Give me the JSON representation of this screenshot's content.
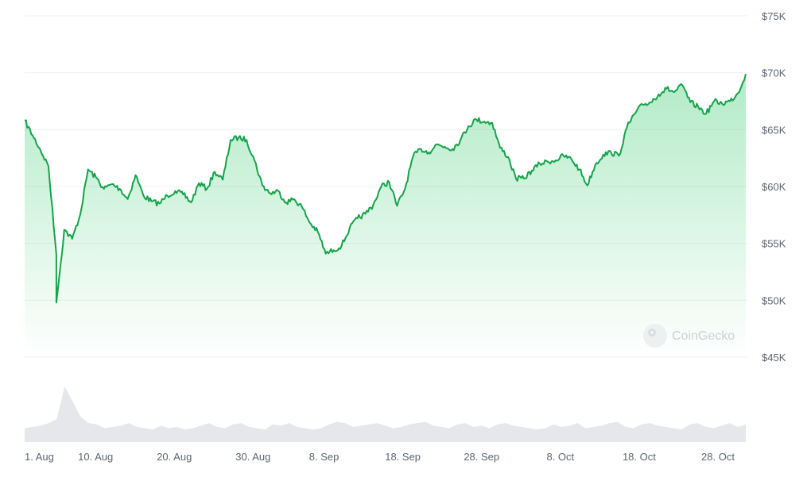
{
  "chart_data": {
    "type": "area",
    "y_axis": {
      "position": "right",
      "ylim": [
        45000,
        75000
      ],
      "ticks": [
        45000,
        50000,
        55000,
        60000,
        65000,
        70000,
        75000
      ],
      "tick_labels": [
        "$45K",
        "$50K",
        "$55K",
        "$60K",
        "$65K",
        "$70K",
        "$75K"
      ]
    },
    "x_axis": {
      "xlim": [
        "2024-08-01",
        "2024-10-28"
      ],
      "ticks": [
        "2024-08-01",
        "2024-08-10",
        "2024-08-20",
        "2024-08-30",
        "2024-09-08",
        "2024-09-18",
        "2024-09-28",
        "2024-10-08",
        "2024-10-18",
        "2024-10-28"
      ],
      "tick_labels": [
        "1. Aug",
        "10. Aug",
        "20. Aug",
        "30. Aug",
        "8. Sep",
        "18. Sep",
        "28. Sep",
        "8. Oct",
        "18. Oct",
        "28. Oct"
      ]
    },
    "grid": true,
    "series": [
      {
        "color": "#16a34a",
        "points": [
          [
            "2024-08-01",
            65800
          ],
          [
            "2024-08-02",
            64500
          ],
          [
            "2024-08-03",
            63200
          ],
          [
            "2024-08-04",
            61800
          ],
          [
            "2024-08-05",
            54000
          ],
          [
            "2024-08-05",
            49800
          ],
          [
            "2024-08-06",
            56200
          ],
          [
            "2024-08-07",
            55400
          ],
          [
            "2024-08-08",
            57500
          ],
          [
            "2024-08-09",
            61500
          ],
          [
            "2024-08-10",
            60800
          ],
          [
            "2024-08-11",
            59800
          ],
          [
            "2024-08-12",
            60200
          ],
          [
            "2024-08-13",
            59800
          ],
          [
            "2024-08-14",
            58900
          ],
          [
            "2024-08-15",
            61000
          ],
          [
            "2024-08-16",
            59200
          ],
          [
            "2024-08-17",
            58700
          ],
          [
            "2024-08-18",
            58500
          ],
          [
            "2024-08-19",
            59200
          ],
          [
            "2024-08-20",
            59600
          ],
          [
            "2024-08-21",
            59300
          ],
          [
            "2024-08-22",
            58600
          ],
          [
            "2024-08-23",
            60300
          ],
          [
            "2024-08-24",
            59800
          ],
          [
            "2024-08-25",
            61300
          ],
          [
            "2024-08-26",
            60600
          ],
          [
            "2024-08-27",
            64100
          ],
          [
            "2024-08-28",
            64300
          ],
          [
            "2024-08-29",
            64100
          ],
          [
            "2024-08-30",
            62300
          ],
          [
            "2024-08-31",
            60100
          ],
          [
            "2024-09-01",
            59400
          ],
          [
            "2024-09-02",
            59600
          ],
          [
            "2024-09-03",
            58600
          ],
          [
            "2024-09-04",
            58900
          ],
          [
            "2024-09-05",
            58200
          ],
          [
            "2024-09-06",
            56800
          ],
          [
            "2024-09-07",
            56000
          ],
          [
            "2024-09-08",
            54100
          ],
          [
            "2024-09-09",
            54400
          ],
          [
            "2024-09-10",
            54800
          ],
          [
            "2024-09-11",
            56300
          ],
          [
            "2024-09-12",
            57200
          ],
          [
            "2024-09-13",
            57600
          ],
          [
            "2024-09-14",
            58400
          ],
          [
            "2024-09-15",
            60000
          ],
          [
            "2024-09-16",
            60400
          ],
          [
            "2024-09-17",
            58300
          ],
          [
            "2024-09-18",
            59800
          ],
          [
            "2024-09-19",
            62600
          ],
          [
            "2024-09-20",
            63300
          ],
          [
            "2024-09-21",
            63000
          ],
          [
            "2024-09-22",
            63700
          ],
          [
            "2024-09-23",
            63500
          ],
          [
            "2024-09-24",
            63300
          ],
          [
            "2024-09-25",
            64100
          ],
          [
            "2024-09-26",
            65300
          ],
          [
            "2024-09-27",
            65900
          ],
          [
            "2024-09-28",
            65700
          ],
          [
            "2024-09-29",
            65600
          ],
          [
            "2024-09-30",
            63400
          ],
          [
            "2024-10-01",
            62600
          ],
          [
            "2024-10-02",
            60700
          ],
          [
            "2024-10-03",
            60700
          ],
          [
            "2024-10-04",
            61400
          ],
          [
            "2024-10-05",
            62000
          ],
          [
            "2024-10-06",
            62200
          ],
          [
            "2024-10-07",
            62300
          ],
          [
            "2024-10-08",
            62700
          ],
          [
            "2024-10-09",
            62400
          ],
          [
            "2024-10-10",
            61500
          ],
          [
            "2024-10-11",
            60100
          ],
          [
            "2024-10-12",
            61900
          ],
          [
            "2024-10-13",
            62800
          ],
          [
            "2024-10-14",
            63000
          ],
          [
            "2024-10-15",
            62700
          ],
          [
            "2024-10-16",
            65200
          ],
          [
            "2024-10-17",
            66400
          ],
          [
            "2024-10-18",
            67200
          ],
          [
            "2024-10-19",
            67400
          ],
          [
            "2024-10-20",
            68100
          ],
          [
            "2024-10-21",
            68600
          ],
          [
            "2024-10-22",
            68300
          ],
          [
            "2024-10-23",
            68900
          ],
          [
            "2024-10-24",
            67400
          ],
          [
            "2024-10-25",
            67000
          ],
          [
            "2024-10-26",
            66400
          ],
          [
            "2024-10-27",
            67500
          ],
          [
            "2024-10-28",
            67300
          ],
          [
            "2024-10-29",
            67500
          ],
          [
            "2024-10-30",
            68200
          ],
          [
            "2024-10-31",
            69900
          ]
        ]
      }
    ],
    "volume": {
      "color": "#e5e7eb",
      "values": [
        22,
        24,
        26,
        30,
        36,
        88,
        64,
        40,
        30,
        28,
        22,
        24,
        26,
        30,
        24,
        22,
        20,
        26,
        22,
        24,
        20,
        22,
        26,
        30,
        24,
        22,
        28,
        30,
        24,
        22,
        20,
        28,
        26,
        30,
        24,
        22,
        20,
        22,
        28,
        32,
        30,
        24,
        26,
        28,
        30,
        26,
        22,
        24,
        28,
        30,
        32,
        26,
        24,
        22,
        28,
        30,
        24,
        26,
        22,
        28,
        30,
        26,
        24,
        22,
        20,
        22,
        28,
        24,
        26,
        30,
        22,
        24,
        26,
        30,
        32,
        24,
        22,
        28,
        30,
        26,
        24,
        22,
        20,
        28,
        30,
        24,
        22,
        26,
        30,
        24,
        28
      ]
    },
    "watermark": "CoinGecko"
  }
}
